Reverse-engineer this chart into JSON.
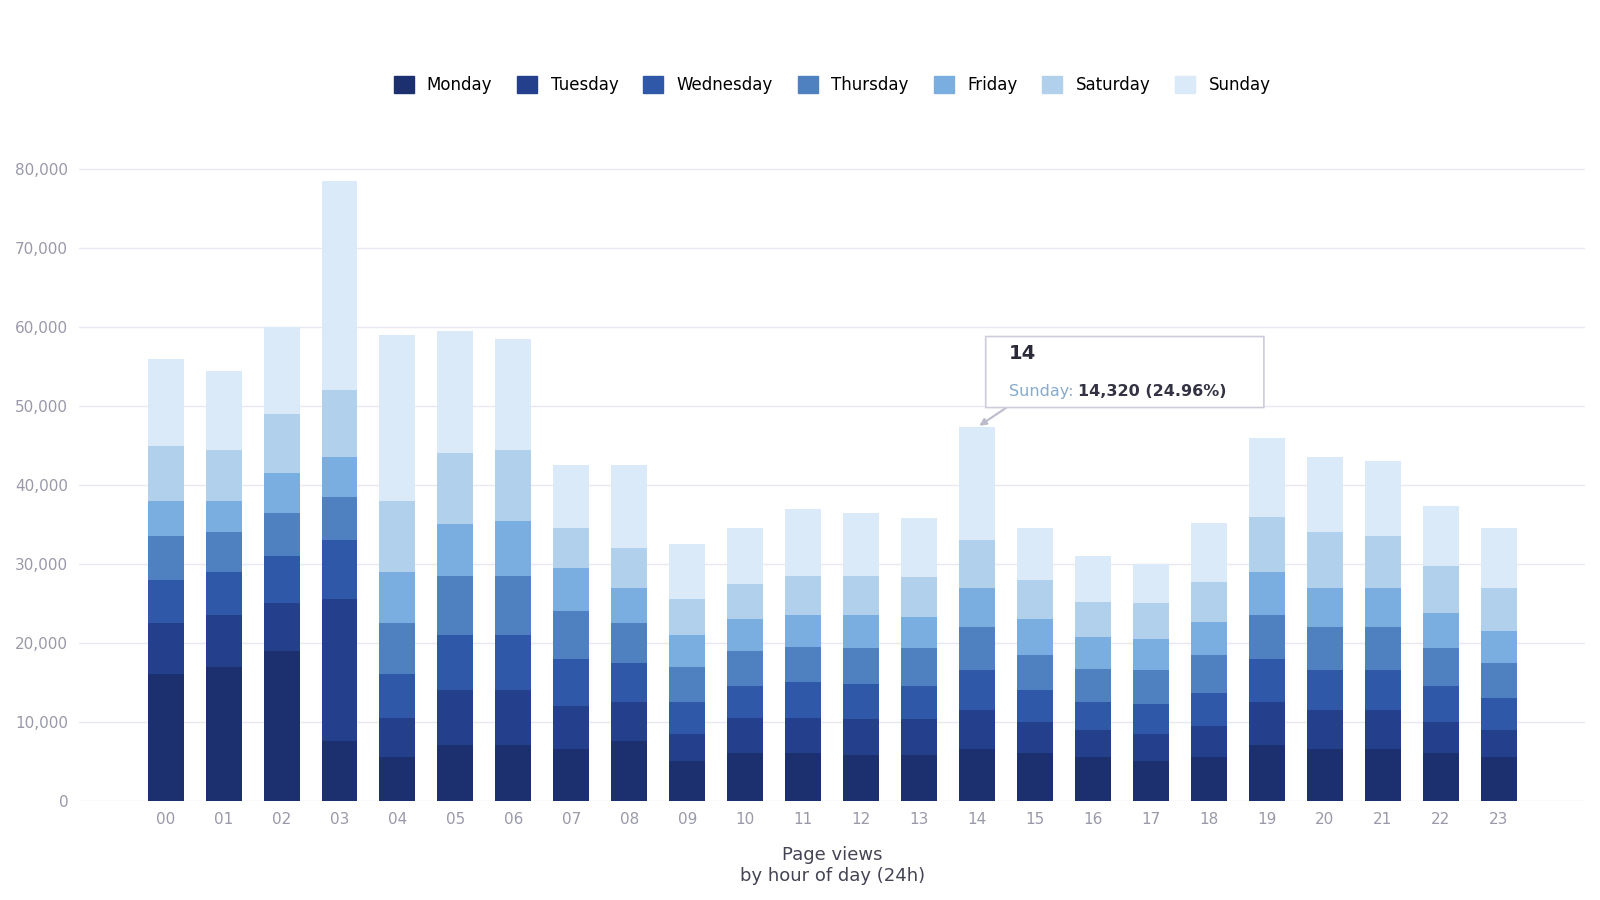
{
  "hours": [
    "00",
    "01",
    "02",
    "03",
    "04",
    "05",
    "06",
    "07",
    "08",
    "09",
    "10",
    "11",
    "12",
    "13",
    "14",
    "15",
    "16",
    "17",
    "18",
    "19",
    "20",
    "21",
    "22",
    "23"
  ],
  "days": [
    "Monday",
    "Tuesday",
    "Wednesday",
    "Thursday",
    "Friday",
    "Saturday",
    "Sunday"
  ],
  "colors": [
    "#1c2f6e",
    "#243f8c",
    "#3058a8",
    "#4f80c0",
    "#7aaee0",
    "#b0d0ec",
    "#daeaf8"
  ],
  "data": {
    "Monday": [
      16000,
      17000,
      19000,
      7500,
      5500,
      7000,
      7000,
      6500,
      7500,
      5000,
      6000,
      6000,
      5800,
      5800,
      6500,
      6000,
      5500,
      5000,
      5500,
      7000,
      6500,
      6500,
      6000,
      5500
    ],
    "Tuesday": [
      6500,
      6500,
      6000,
      18000,
      5000,
      7000,
      7000,
      5500,
      5000,
      3500,
      4500,
      4500,
      4500,
      4500,
      5000,
      4000,
      3500,
      3500,
      4000,
      5500,
      5000,
      5000,
      4000,
      3500
    ],
    "Wednesday": [
      5500,
      5500,
      6000,
      7500,
      5500,
      7000,
      7000,
      6000,
      5000,
      4000,
      4000,
      4500,
      4500,
      4200,
      5000,
      4000,
      3500,
      3800,
      4200,
      5500,
      5000,
      5000,
      4500,
      4000
    ],
    "Thursday": [
      5500,
      5000,
      5500,
      5500,
      6500,
      7500,
      7500,
      6000,
      5000,
      4500,
      4500,
      4500,
      4500,
      4800,
      5500,
      4500,
      4200,
      4200,
      4800,
      5500,
      5500,
      5500,
      4800,
      4500
    ],
    "Friday": [
      4500,
      4000,
      5000,
      5000,
      6500,
      6500,
      7000,
      5500,
      4500,
      4000,
      4000,
      4000,
      4200,
      4000,
      5000,
      4500,
      4000,
      4000,
      4200,
      5500,
      5000,
      5000,
      4500,
      4000
    ],
    "Saturday": [
      7000,
      6500,
      7500,
      8500,
      9000,
      9000,
      9000,
      5000,
      5000,
      4500,
      4500,
      5000,
      5000,
      5000,
      6000,
      5000,
      4500,
      4500,
      5000,
      7000,
      7000,
      6500,
      6000,
      5500
    ],
    "Sunday": [
      11000,
      10000,
      11000,
      26500,
      21000,
      15500,
      14000,
      8000,
      10500,
      7000,
      7000,
      8500,
      8000,
      7500,
      14320,
      6500,
      5800,
      5000,
      7500,
      10000,
      9500,
      9500,
      7500,
      7500
    ]
  },
  "tooltip_hour_idx": 14,
  "tooltip_hour_label": "14",
  "tooltip_day": "Sunday",
  "tooltip_value_str": "14,320",
  "tooltip_pct_str": "24.96%",
  "xlabel_line1": "Page views",
  "xlabel_line2": "by hour of day (24h)",
  "ylim_max": 85000,
  "ytick_step": 10000,
  "background_color": "#ffffff",
  "grid_color": "#e8e8f0",
  "tick_color": "#9999aa",
  "legend_fontsize": 12,
  "axis_label_fontsize": 13,
  "tick_fontsize": 11
}
